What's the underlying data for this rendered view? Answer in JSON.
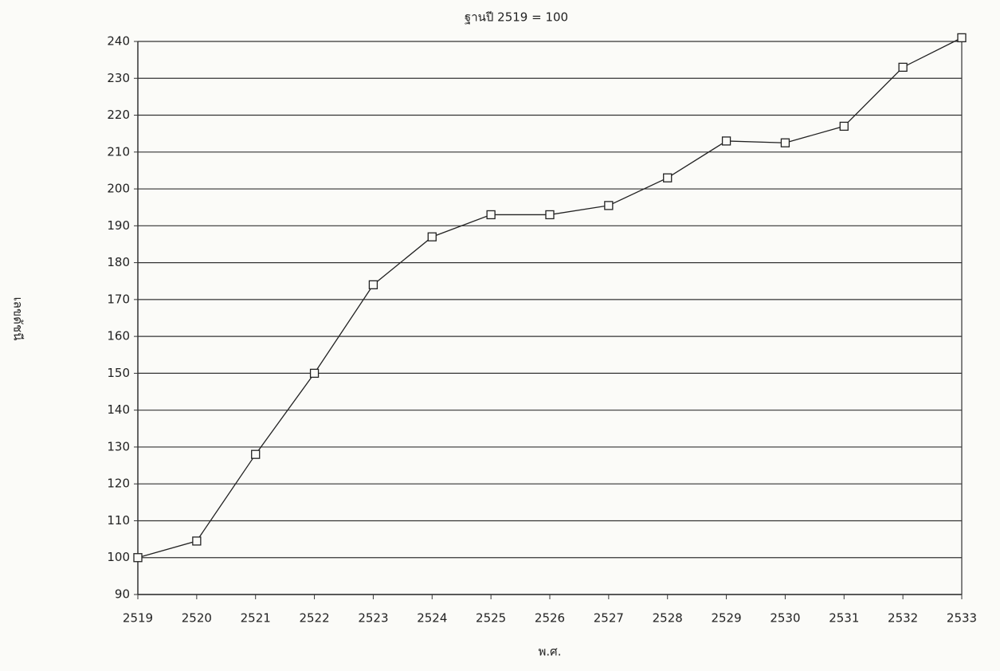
{
  "chart_data": {
    "type": "line",
    "title": "ฐานปี 2519 = 100",
    "x_label": "พ.ศ.",
    "y_label": "เลขดัชนี",
    "categories": [
      "2519",
      "2520",
      "2521",
      "2522",
      "2523",
      "2524",
      "2525",
      "2526",
      "2527",
      "2528",
      "2529",
      "2530",
      "2531",
      "2532",
      "2533"
    ],
    "values": [
      100,
      104.5,
      128,
      150,
      174,
      187,
      193,
      193,
      195.5,
      203,
      213,
      212.5,
      217,
      233,
      241
    ],
    "color": "#222222",
    "ylim": [
      90,
      240
    ],
    "yticks": [
      90,
      100,
      110,
      120,
      130,
      140,
      150,
      160,
      170,
      180,
      190,
      200,
      210,
      220,
      230,
      240
    ],
    "grid": true
  }
}
